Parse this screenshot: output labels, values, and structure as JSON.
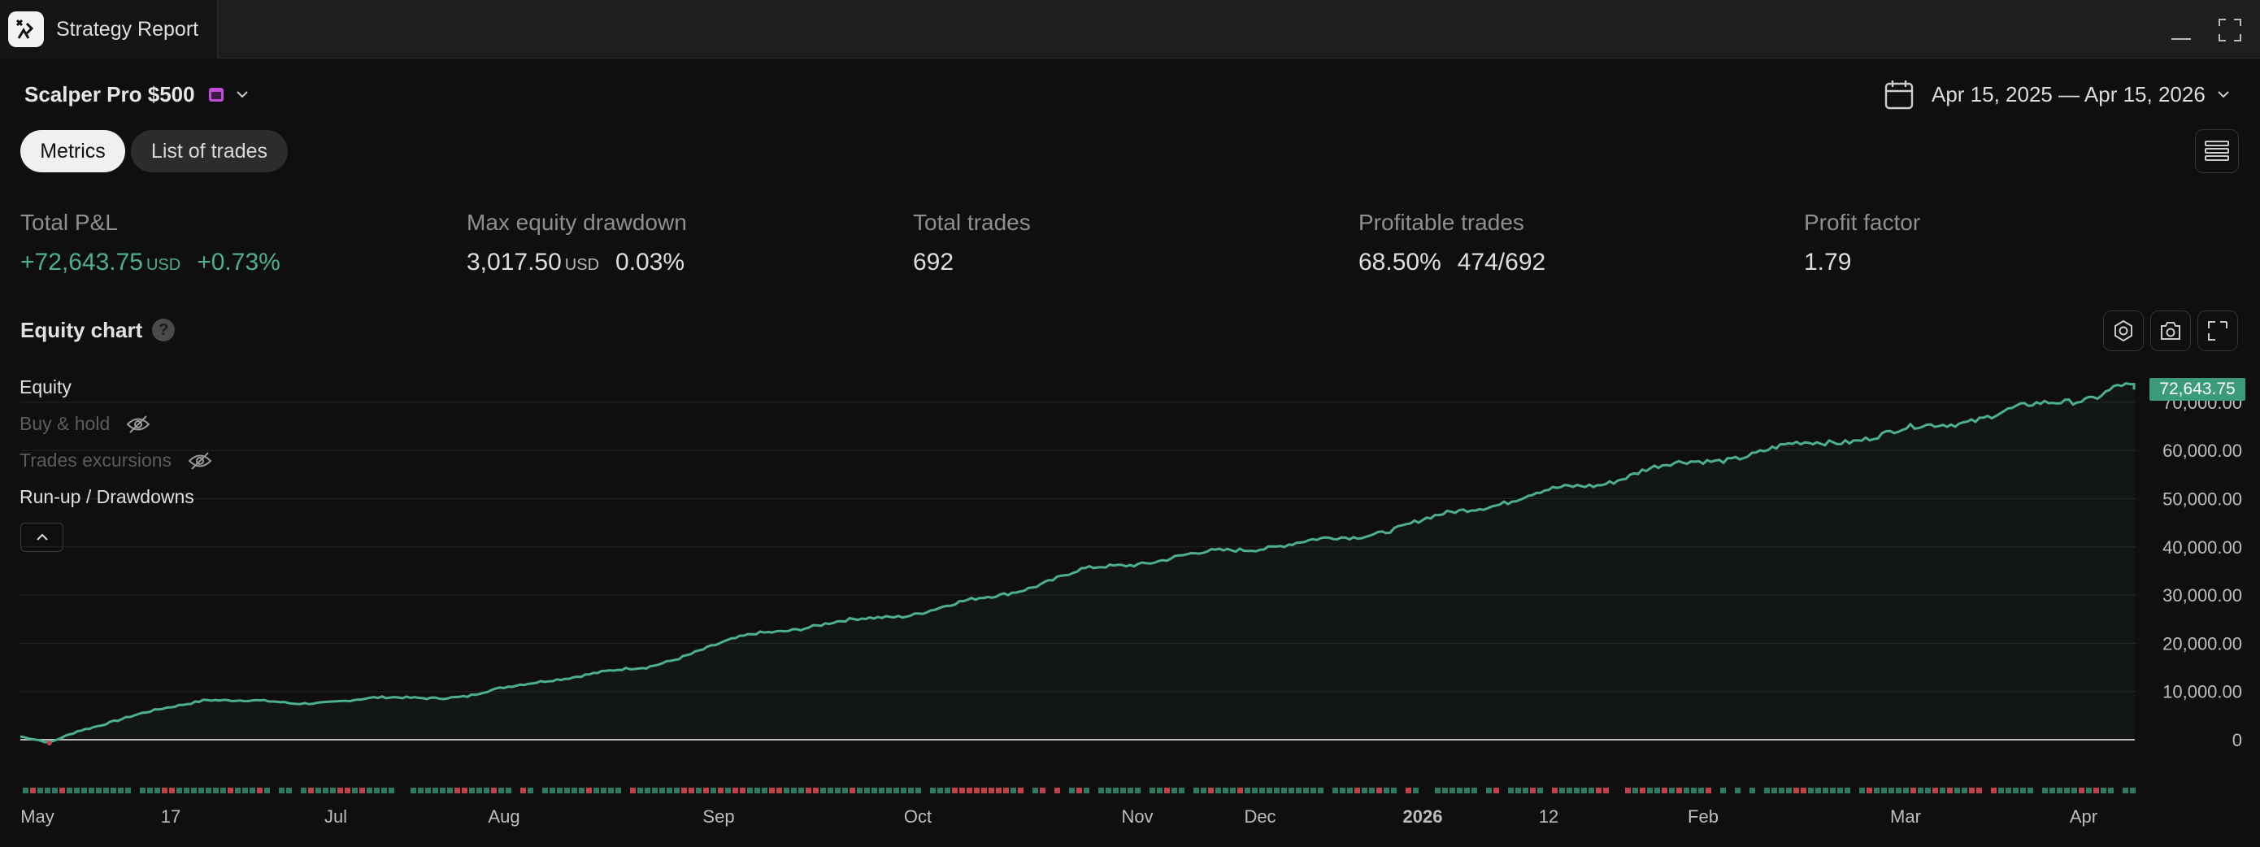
{
  "titlebar": {
    "tab_title": "Strategy Report",
    "icons": [
      "app-logo",
      "minimize-icon",
      "maximize-icon"
    ]
  },
  "header": {
    "strategy_name": "Scalper Pro $500",
    "strategy_badge_color": "#c04bd8",
    "date_range": "Apr 15, 2025 — Apr 15, 2026"
  },
  "tabs": {
    "metrics": "Metrics",
    "trades": "List of trades"
  },
  "metrics": {
    "pnl": {
      "label": "Total P&L",
      "value": "+72,643.75",
      "unit": "USD",
      "pct": "+0.73%"
    },
    "drawdown": {
      "label": "Max equity drawdown",
      "value": "3,017.50",
      "unit": "USD",
      "pct": "0.03%"
    },
    "total_trades": {
      "label": "Total trades",
      "value": "692"
    },
    "profitable": {
      "label": "Profitable trades",
      "pct": "68.50%",
      "ratio": "474/692"
    },
    "profit_factor": {
      "label": "Profit factor",
      "value": "1.79"
    }
  },
  "equity_chart": {
    "title": "Equity chart",
    "help": "?",
    "legend": {
      "equity": "Equity",
      "buy_hold": "Buy & hold",
      "excursions": "Trades excursions",
      "runup": "Run-up / Drawdowns"
    },
    "last_value_label": "72,643.75"
  },
  "colors": {
    "equity_line": "#4caf8f",
    "positive": "#4caf8f",
    "negative": "#c2424a",
    "background": "#0f0f0f"
  },
  "chart_data": {
    "type": "area",
    "series": [
      {
        "name": "Equity",
        "x": [
          "2025-04-15",
          "2025-04-20",
          "2025-04-25",
          "2025-05-05",
          "2025-05-17",
          "2025-06-01",
          "2025-06-15",
          "2025-07-01",
          "2025-07-15",
          "2025-08-01",
          "2025-08-10",
          "2025-08-20",
          "2025-09-01",
          "2025-09-15",
          "2025-10-01",
          "2025-10-15",
          "2025-11-01",
          "2025-11-15",
          "2025-12-01",
          "2025-12-15",
          "2026-01-01",
          "2026-01-12",
          "2026-01-20",
          "2026-02-01",
          "2026-02-15",
          "2026-03-01",
          "2026-03-15",
          "2026-04-01",
          "2026-04-08",
          "2026-04-12",
          "2026-04-15"
        ],
        "values": [
          500,
          -700,
          2000,
          5000,
          8500,
          7500,
          8500,
          9000,
          12500,
          15000,
          18500,
          22000,
          24000,
          26000,
          30000,
          35000,
          38000,
          40000,
          42000,
          46000,
          51000,
          53000,
          56000,
          58000,
          61000,
          63000,
          66000,
          70000,
          71500,
          73500,
          72643.75
        ]
      }
    ],
    "x_ticks": [
      "May",
      "17",
      "Jul",
      "Aug",
      "Sep",
      "Oct",
      "Nov",
      "Dec",
      "2026",
      "12",
      "Feb",
      "Mar",
      "Apr"
    ],
    "y_ticks": [
      "70,000.00",
      "60,000.00",
      "50,000.00",
      "40,000.00",
      "30,000.00",
      "20,000.00",
      "10,000.00",
      "0"
    ],
    "ylim": [
      0,
      70000
    ],
    "grid": true
  }
}
